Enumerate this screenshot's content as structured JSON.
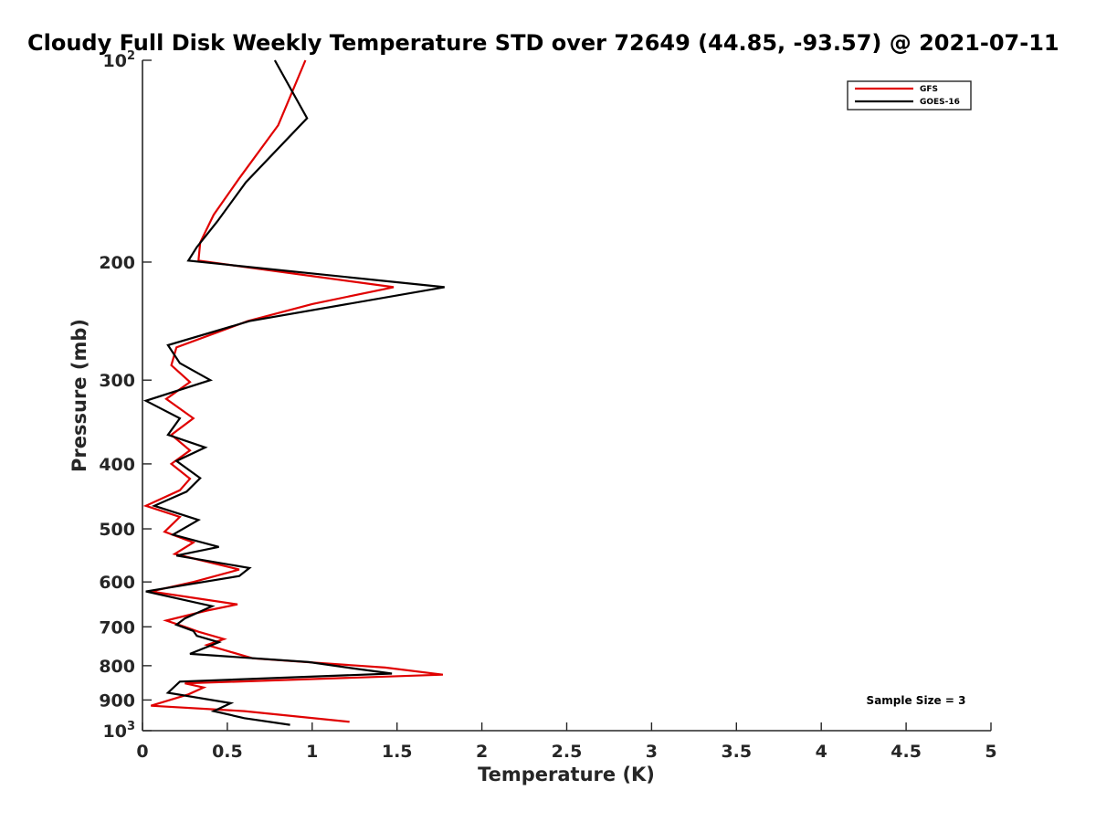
{
  "chart_data": {
    "type": "line",
    "title": "Cloudy Full Disk Weekly Temperature STD over 72649 (44.85, -93.57) @ 2021-07-11",
    "xlabel": "Temperature (K)",
    "ylabel": "Pressure (mb)",
    "xlim": [
      0,
      5
    ],
    "ylim": [
      1000,
      100
    ],
    "yscale": "log",
    "y_reversed": true,
    "grid": false,
    "legend_position": "top-right",
    "x_ticks": [
      "0",
      "0.5",
      "1",
      "1.5",
      "2",
      "2.5",
      "3",
      "3.5",
      "4",
      "4.5",
      "5"
    ],
    "y_ticks": [
      {
        "value": 100,
        "label": "10",
        "sup": "2"
      },
      {
        "value": 200,
        "label": "200",
        "sup": ""
      },
      {
        "value": 300,
        "label": "300",
        "sup": ""
      },
      {
        "value": 400,
        "label": "400",
        "sup": ""
      },
      {
        "value": 500,
        "label": "500",
        "sup": ""
      },
      {
        "value": 600,
        "label": "600",
        "sup": ""
      },
      {
        "value": 700,
        "label": "700",
        "sup": ""
      },
      {
        "value": 800,
        "label": "800",
        "sup": ""
      },
      {
        "value": 900,
        "label": "900",
        "sup": ""
      },
      {
        "value": 1000,
        "label": "10",
        "sup": "3"
      }
    ],
    "series": [
      {
        "name": "GFS",
        "color": "#e00000",
        "points": [
          [
            0.96,
            100
          ],
          [
            0.8,
            125
          ],
          [
            0.57,
            150
          ],
          [
            0.42,
            170
          ],
          [
            0.34,
            187
          ],
          [
            0.33,
            199
          ],
          [
            1.48,
            218
          ],
          [
            1.0,
            231
          ],
          [
            0.62,
            245
          ],
          [
            0.2,
            268
          ],
          [
            0.17,
            285
          ],
          [
            0.28,
            302
          ],
          [
            0.14,
            320
          ],
          [
            0.3,
            342
          ],
          [
            0.17,
            362
          ],
          [
            0.28,
            382
          ],
          [
            0.17,
            400
          ],
          [
            0.28,
            421
          ],
          [
            0.22,
            438
          ],
          [
            0.02,
            462
          ],
          [
            0.22,
            480
          ],
          [
            0.13,
            505
          ],
          [
            0.3,
            524
          ],
          [
            0.19,
            545
          ],
          [
            0.57,
            575
          ],
          [
            0.3,
            600
          ],
          [
            0.05,
            620
          ],
          [
            0.56,
            648
          ],
          [
            0.38,
            662
          ],
          [
            0.14,
            685
          ],
          [
            0.25,
            700
          ],
          [
            0.33,
            712
          ],
          [
            0.48,
            730
          ],
          [
            0.38,
            745
          ],
          [
            0.52,
            763
          ],
          [
            0.65,
            780
          ],
          [
            1.43,
            805
          ],
          [
            1.77,
            825
          ],
          [
            0.25,
            850
          ],
          [
            0.36,
            862
          ],
          [
            0.27,
            883
          ],
          [
            0.05,
            918
          ],
          [
            0.6,
            935
          ],
          [
            1.22,
            970
          ]
        ]
      },
      {
        "name": "GOES-16",
        "color": "#000000",
        "points": [
          [
            0.78,
            100
          ],
          [
            0.97,
            122
          ],
          [
            0.61,
            152
          ],
          [
            0.44,
            174
          ],
          [
            0.32,
            190
          ],
          [
            0.27,
            199
          ],
          [
            1.78,
            218
          ],
          [
            0.63,
            245
          ],
          [
            0.15,
            266
          ],
          [
            0.22,
            283
          ],
          [
            0.4,
            300
          ],
          [
            0.02,
            322
          ],
          [
            0.22,
            342
          ],
          [
            0.15,
            362
          ],
          [
            0.37,
            378
          ],
          [
            0.2,
            396
          ],
          [
            0.34,
            420
          ],
          [
            0.26,
            440
          ],
          [
            0.07,
            462
          ],
          [
            0.33,
            485
          ],
          [
            0.18,
            510
          ],
          [
            0.45,
            532
          ],
          [
            0.2,
            548
          ],
          [
            0.63,
            572
          ],
          [
            0.57,
            588
          ],
          [
            0.02,
            620
          ],
          [
            0.41,
            652
          ],
          [
            0.25,
            680
          ],
          [
            0.2,
            695
          ],
          [
            0.3,
            710
          ],
          [
            0.32,
            722
          ],
          [
            0.45,
            738
          ],
          [
            0.28,
            768
          ],
          [
            0.98,
            790
          ],
          [
            1.25,
            808
          ],
          [
            1.47,
            822
          ],
          [
            0.22,
            845
          ],
          [
            0.15,
            878
          ],
          [
            0.52,
            910
          ],
          [
            0.42,
            935
          ],
          [
            0.6,
            958
          ],
          [
            0.87,
            980
          ]
        ]
      }
    ],
    "annotation": "Sample Size = 3"
  }
}
